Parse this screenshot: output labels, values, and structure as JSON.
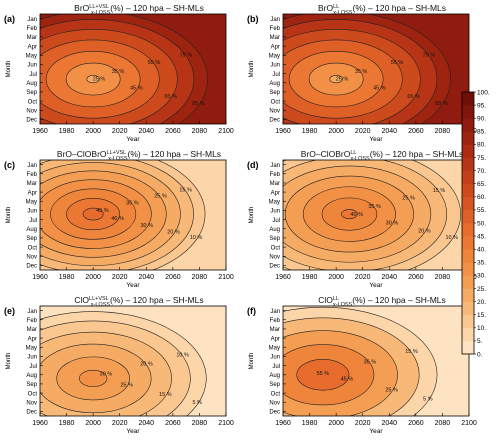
{
  "panel_rows": [
    [
      "(a)",
      "(b)"
    ],
    [
      "(c)",
      "(d)"
    ],
    [
      "(e)",
      "(f)"
    ]
  ],
  "chart_data": {
    "type": "heatmap",
    "shared_x": {
      "label": "Year",
      "ticks": [
        1960,
        1980,
        2000,
        2020,
        2040,
        2060,
        2080,
        2100
      ],
      "range": [
        1960,
        2100
      ]
    },
    "shared_y": {
      "label": "Month",
      "ticks": [
        "Jan",
        "Feb",
        "Mar",
        "Apr",
        "May",
        "Jun",
        "Jul",
        "Aug",
        "Sep",
        "Oct",
        "Nov",
        "Dec"
      ]
    },
    "colorbar": {
      "ticks": [
        100,
        95,
        90,
        85,
        80,
        75,
        70,
        65,
        60,
        55,
        50,
        45,
        40,
        35,
        30,
        25,
        20,
        15,
        10,
        5,
        0
      ],
      "range": [
        0,
        100
      ],
      "colors": [
        "#fde3c1",
        "#fcd5a8",
        "#fac790",
        "#f8b978",
        "#f6ab64",
        "#f49e53",
        "#f29146",
        "#ef843b",
        "#eb7733",
        "#e66b2d",
        "#df6027",
        "#d75522",
        "#cd4a1d",
        "#c23f19",
        "#b73516",
        "#ab2c13",
        "#9e2410",
        "#8f1c0e",
        "#7f150b",
        "#6e0f08"
      ]
    },
    "panels": [
      {
        "letter": "(a)",
        "title_main": "BrO",
        "title_sup": "LL+VSL",
        "title_sub": "x-LOSS",
        "title_suffix": "(%) –  120 hpa – SH-MLs",
        "center": {
          "x": 2000,
          "month": 6.6,
          "value": 22
        },
        "outer": 86,
        "contours": [
          {
            "level": 25,
            "label": "25 %"
          },
          {
            "level": 35,
            "label": "35 %"
          },
          {
            "level": 45,
            "label": "45 %"
          },
          {
            "level": 55,
            "label": "55 %"
          },
          {
            "level": 65,
            "label": "65 %"
          },
          {
            "level": 75,
            "label": "75 %"
          },
          {
            "level": 85,
            "label": "85 %"
          }
        ]
      },
      {
        "letter": "(b)",
        "title_main": "BrO",
        "title_sup": "LL",
        "title_sub": "x-LOSS",
        "title_suffix": "(%) –  120 hpa – SH-MLs",
        "center": {
          "x": 2000,
          "month": 6.6,
          "value": 22
        },
        "outer": 86,
        "contours": [
          {
            "level": 25,
            "label": "25 %"
          },
          {
            "level": 35,
            "label": "35 %"
          },
          {
            "level": 45,
            "label": "45 %"
          },
          {
            "level": 55,
            "label": "55 %"
          },
          {
            "level": 65,
            "label": "65 %"
          },
          {
            "level": 75,
            "label": "75 %"
          },
          {
            "level": 85,
            "label": "85 %"
          }
        ]
      },
      {
        "letter": "(c)",
        "title_main": "BrO",
        "title_sup": "LL+VSL",
        "title_sub": "x-LOSS",
        "title_prefix": "BrO–ClO",
        "title_suffix": "(%) –  120 hpa – SH-MLs",
        "center": {
          "x": 2000,
          "month": 5.4,
          "value": 48
        },
        "outer": 8,
        "contours": [
          {
            "level": 10,
            "label": "10 %"
          },
          {
            "level": 15,
            "label": "15 %"
          },
          {
            "level": 20,
            "label": "20 %"
          },
          {
            "level": 25,
            "label": "25 %"
          },
          {
            "level": 30,
            "label": "30 %"
          },
          {
            "level": 35,
            "label": "35 %"
          },
          {
            "level": 40,
            "label": "40 %"
          },
          {
            "level": 45,
            "label": "45 %"
          }
        ]
      },
      {
        "letter": "(d)",
        "title_main": "BrO",
        "title_sup": "LL",
        "title_sub": "x-LOSS",
        "title_prefix": "BrO–ClO",
        "title_suffix": "(%) –  120 hpa – SH-MLs",
        "center": {
          "x": 2010,
          "month": 5.4,
          "value": 42
        },
        "outer": 8,
        "contours": [
          {
            "level": 10,
            "label": "10 %"
          },
          {
            "level": 15,
            "label": "15 %"
          },
          {
            "level": 20,
            "label": "20 %"
          },
          {
            "level": 25,
            "label": "25 %"
          },
          {
            "level": 30,
            "label": "30 %"
          },
          {
            "level": 35,
            "label": "35 %"
          },
          {
            "level": 40,
            "label": "40 %"
          }
        ]
      },
      {
        "letter": "(e)",
        "title_main": "ClO",
        "title_sup": "LL+VSL",
        "title_sub": "x-LOSS",
        "title_suffix": "(%) –  120 hpa – SH-MLs",
        "center": {
          "x": 2000,
          "month": 7.4,
          "value": 33
        },
        "outer": 4,
        "contours": [
          {
            "level": 5,
            "label": "5 %"
          },
          {
            "level": 10,
            "label": "10 %"
          },
          {
            "level": 15,
            "label": "15 %"
          },
          {
            "level": 20,
            "label": "20 %"
          },
          {
            "level": 25,
            "label": "25 %"
          },
          {
            "level": 30,
            "label": "30 %"
          }
        ]
      },
      {
        "letter": "(f)",
        "title_main": "ClO",
        "title_sup": "LL",
        "title_sub": "x-LOSS",
        "title_suffix": "(%) –  120 hpa – SH-MLs",
        "center": {
          "x": 1990,
          "month": 7.0,
          "value": 55
        },
        "outer": 4,
        "contours": [
          {
            "level": 5,
            "label": "5 %"
          },
          {
            "level": 15,
            "label": "15 %"
          },
          {
            "level": 25,
            "label": "25 %"
          },
          {
            "level": 35,
            "label": "35 %"
          },
          {
            "level": 45,
            "label": "45 %"
          },
          {
            "level": 55,
            "label": "55 %"
          }
        ]
      }
    ]
  }
}
